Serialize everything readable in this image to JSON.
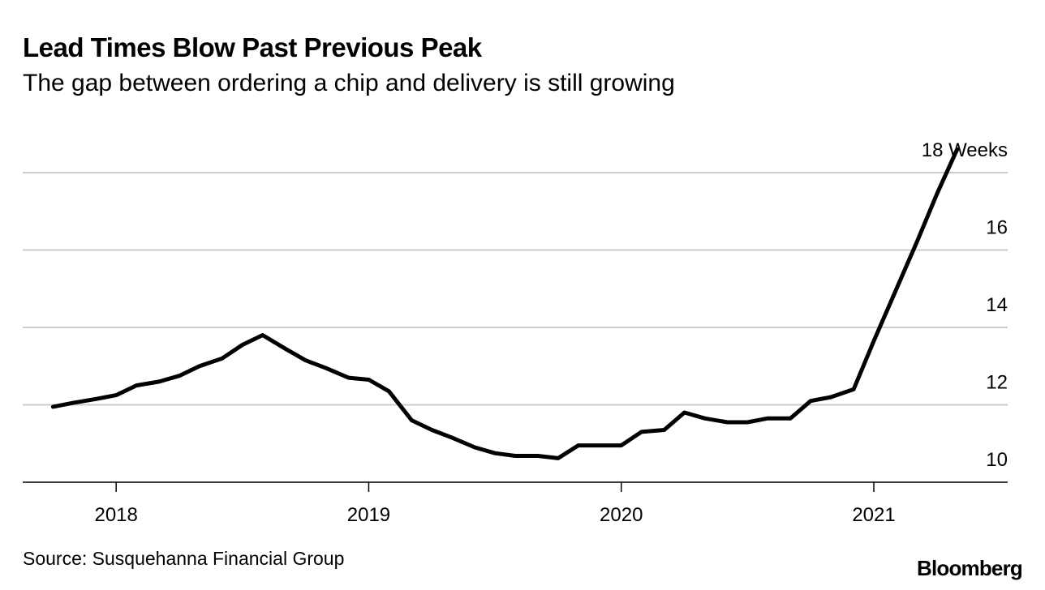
{
  "header": {
    "title": "Lead Times Blow Past Previous Peak",
    "subtitle": "The gap between ordering a chip and delivery is still growing"
  },
  "footer": {
    "source": "Source: Susquehanna Financial Group",
    "brand": "Bloomberg"
  },
  "chart_data": {
    "type": "line",
    "title": "Lead Times Blow Past Previous Peak",
    "subtitle": "The gap between ordering a chip and delivery is still growing",
    "xlabel": "",
    "ylabel": "Weeks",
    "unit_label": "18 Weeks",
    "ylim": [
      10,
      18
    ],
    "xlim": [
      2017.63,
      2021.53
    ],
    "yticks": [
      10,
      12,
      14,
      16,
      18
    ],
    "ytick_labels": [
      "10",
      "12",
      "14",
      "16",
      "18 Weeks"
    ],
    "xticks": [
      2018,
      2019,
      2020,
      2021
    ],
    "xtick_labels": [
      "2018",
      "2019",
      "2020",
      "2021"
    ],
    "grid": true,
    "line_color": "#000000",
    "series": [
      {
        "name": "Lead time",
        "x": [
          2017.75,
          2017.83,
          2017.92,
          2018.0,
          2018.08,
          2018.17,
          2018.25,
          2018.33,
          2018.42,
          2018.5,
          2018.58,
          2018.67,
          2018.75,
          2018.83,
          2018.92,
          2019.0,
          2019.08,
          2019.17,
          2019.25,
          2019.33,
          2019.42,
          2019.5,
          2019.58,
          2019.67,
          2019.75,
          2019.83,
          2019.92,
          2020.0,
          2020.08,
          2020.17,
          2020.25,
          2020.33,
          2020.42,
          2020.5,
          2020.58,
          2020.67,
          2020.75,
          2020.83,
          2020.92,
          2021.0,
          2021.08,
          2021.17,
          2021.25,
          2021.33
        ],
        "y": [
          11.95,
          12.05,
          12.15,
          12.25,
          12.5,
          12.6,
          12.75,
          13.0,
          13.2,
          13.55,
          13.8,
          13.45,
          13.15,
          12.95,
          12.7,
          12.65,
          12.35,
          11.6,
          11.35,
          11.15,
          10.9,
          10.75,
          10.68,
          10.68,
          10.62,
          10.95,
          10.95,
          10.95,
          11.3,
          11.35,
          11.8,
          11.65,
          11.55,
          11.55,
          11.65,
          11.65,
          12.1,
          12.2,
          12.4,
          13.65,
          14.85,
          16.2,
          17.45,
          18.6
        ]
      }
    ]
  }
}
